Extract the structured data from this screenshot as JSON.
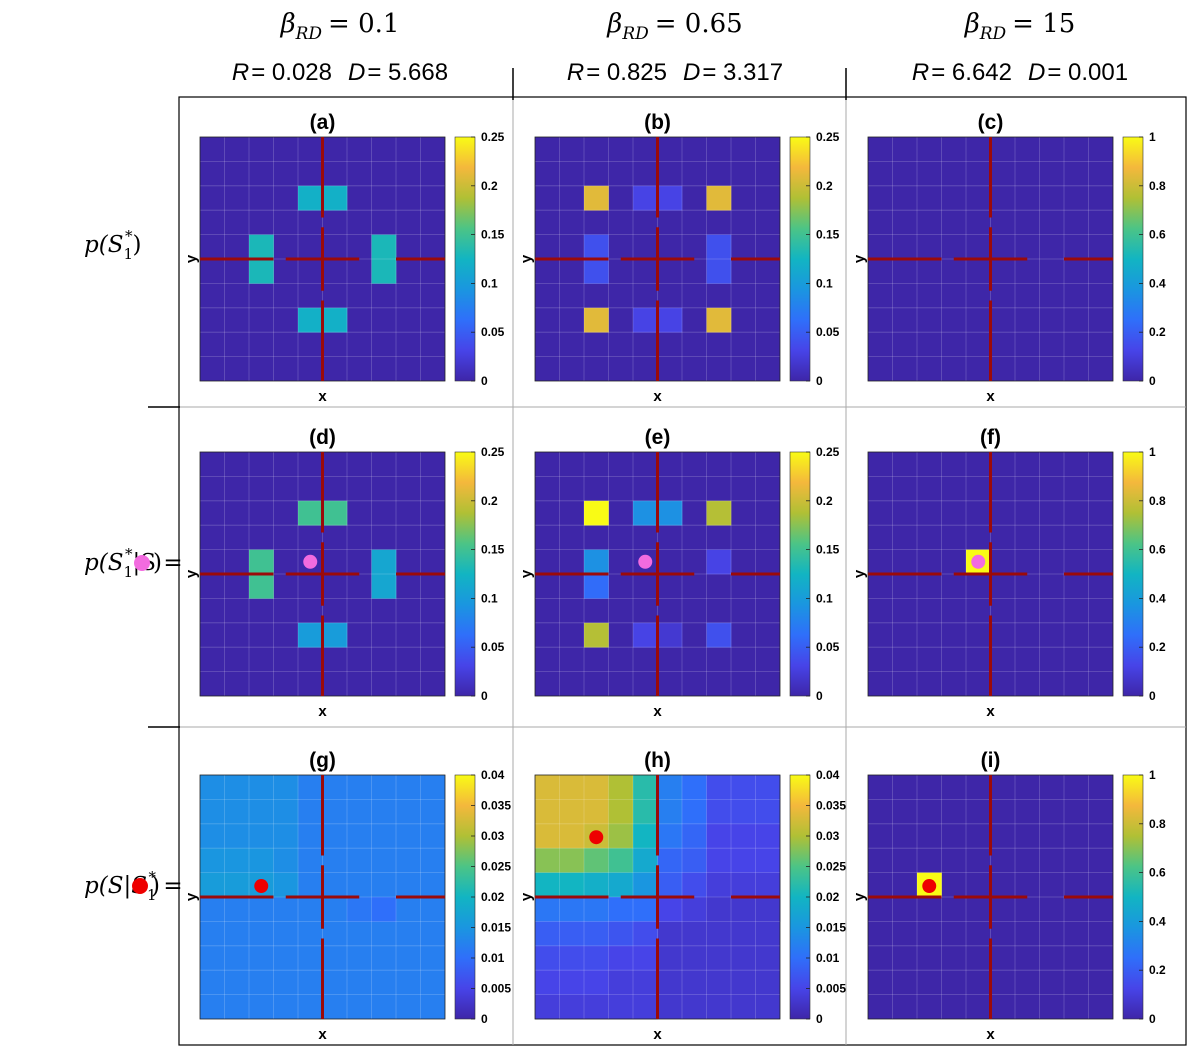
{
  "colors": {
    "low": "#3e26a8",
    "grid": "#6f69d0",
    "axis_line": "#9b0a0a",
    "marker_pink": "#f26bdf",
    "marker_red": "#ee0000",
    "frame": "#000000"
  },
  "columns": [
    {
      "beta_sym": "β",
      "beta_sub": "RD",
      "beta_value": "= 0.1",
      "r_label": "R",
      "r_value": "= 0.028",
      "d_label": "D",
      "d_value": "= 5.668"
    },
    {
      "beta_sym": "β",
      "beta_sub": "RD",
      "beta_value": "= 0.65",
      "r_label": "R",
      "r_value": "= 0.825",
      "d_label": "D",
      "d_value": "= 3.317"
    },
    {
      "beta_sym": "β",
      "beta_sub": "RD",
      "beta_value": "= 15",
      "r_label": "R",
      "r_value": "= 6.642",
      "d_label": "D",
      "d_value": "= 0.001"
    }
  ],
  "rows": [
    {
      "pre": "p(S",
      "sub": "1",
      "sup": "*",
      "post": ")",
      "marker": ""
    },
    {
      "pre": "p(S",
      "sub": "1",
      "sup": "*",
      "post": "|S =",
      "marker": "pink",
      "close": ")"
    },
    {
      "pre": "p(S|S",
      "sub": "1",
      "sup": "*",
      "post": " =",
      "marker": "red",
      "close": ")"
    }
  ],
  "chart_data": [
    {
      "id": "a",
      "type": "heatmap",
      "title": "(a)",
      "xlabel": "x",
      "ylabel": "y",
      "grid_size": 10,
      "cmax": 0.25,
      "colorbar_ticks": [
        "0",
        "0.05",
        "0.1",
        "0.15",
        "0.2",
        "0.25"
      ],
      "colorbar_tick_values": [
        0,
        0.05,
        0.1,
        0.15,
        0.2,
        0.25
      ],
      "cells": [
        [
          4,
          2,
          0.12
        ],
        [
          5,
          2,
          0.12
        ],
        [
          2,
          4,
          0.13
        ],
        [
          2,
          5,
          0.13
        ],
        [
          7,
          4,
          0.13
        ],
        [
          7,
          5,
          0.13
        ],
        [
          4,
          7,
          0.12
        ],
        [
          5,
          7,
          0.12
        ]
      ]
    },
    {
      "id": "b",
      "type": "heatmap",
      "title": "(b)",
      "xlabel": "x",
      "ylabel": "y",
      "grid_size": 10,
      "cmax": 0.25,
      "colorbar_ticks": [
        "0",
        "0.05",
        "0.1",
        "0.15",
        "0.2",
        "0.25"
      ],
      "colorbar_tick_values": [
        0,
        0.05,
        0.1,
        0.15,
        0.2,
        0.25
      ],
      "cells": [
        [
          2,
          2,
          0.21
        ],
        [
          7,
          2,
          0.21
        ],
        [
          4,
          2,
          0.03
        ],
        [
          5,
          2,
          0.03
        ],
        [
          2,
          4,
          0.04
        ],
        [
          2,
          5,
          0.04
        ],
        [
          7,
          4,
          0.04
        ],
        [
          7,
          5,
          0.04
        ],
        [
          2,
          7,
          0.21
        ],
        [
          7,
          7,
          0.21
        ],
        [
          4,
          7,
          0.03
        ],
        [
          5,
          7,
          0.03
        ]
      ]
    },
    {
      "id": "c",
      "type": "heatmap",
      "title": "(c)",
      "xlabel": "x",
      "ylabel": "y",
      "grid_size": 10,
      "cmax": 1,
      "colorbar_ticks": [
        "0",
        "0.2",
        "0.4",
        "0.6",
        "0.8",
        "1"
      ],
      "colorbar_tick_values": [
        0,
        0.2,
        0.4,
        0.6,
        0.8,
        1
      ],
      "cells": []
    },
    {
      "id": "d",
      "type": "heatmap",
      "title": "(d)",
      "xlabel": "x",
      "ylabel": "y",
      "grid_size": 10,
      "cmax": 0.25,
      "colorbar_ticks": [
        "0",
        "0.05",
        "0.1",
        "0.15",
        "0.2",
        "0.25"
      ],
      "colorbar_tick_values": [
        0,
        0.05,
        0.1,
        0.15,
        0.2,
        0.25
      ],
      "cells": [
        [
          4,
          2,
          0.15
        ],
        [
          5,
          2,
          0.15
        ],
        [
          2,
          4,
          0.15
        ],
        [
          2,
          5,
          0.15
        ],
        [
          7,
          4,
          0.11
        ],
        [
          7,
          5,
          0.11
        ],
        [
          4,
          7,
          0.1
        ],
        [
          5,
          7,
          0.1
        ]
      ],
      "marker": {
        "color": "pink",
        "col": 4.5,
        "row": 4.5
      }
    },
    {
      "id": "e",
      "type": "heatmap",
      "title": "(e)",
      "xlabel": "x",
      "ylabel": "y",
      "grid_size": 10,
      "cmax": 0.25,
      "colorbar_ticks": [
        "0",
        "0.05",
        "0.1",
        "0.15",
        "0.2",
        "0.25"
      ],
      "colorbar_tick_values": [
        0,
        0.05,
        0.1,
        0.15,
        0.2,
        0.25
      ],
      "cells": [
        [
          2,
          2,
          0.25
        ],
        [
          4,
          2,
          0.09
        ],
        [
          5,
          2,
          0.09
        ],
        [
          7,
          2,
          0.19
        ],
        [
          2,
          4,
          0.09
        ],
        [
          2,
          5,
          0.06
        ],
        [
          7,
          4,
          0.03
        ],
        [
          2,
          7,
          0.19
        ],
        [
          4,
          7,
          0.03
        ],
        [
          5,
          7,
          0.02
        ],
        [
          7,
          7,
          0.04
        ]
      ],
      "marker": {
        "color": "pink",
        "col": 4.5,
        "row": 4.5
      }
    },
    {
      "id": "f",
      "type": "heatmap",
      "title": "(f)",
      "xlabel": "x",
      "ylabel": "y",
      "grid_size": 10,
      "cmax": 1,
      "colorbar_ticks": [
        "0",
        "0.2",
        "0.4",
        "0.6",
        "0.8",
        "1"
      ],
      "colorbar_tick_values": [
        0,
        0.2,
        0.4,
        0.6,
        0.8,
        1
      ],
      "cells": [
        [
          4,
          4,
          1.0
        ]
      ],
      "marker": {
        "color": "pink",
        "col": 4.5,
        "row": 4.5
      }
    },
    {
      "id": "g",
      "type": "heatmap",
      "title": "(g)",
      "xlabel": "x",
      "ylabel": "y",
      "grid_size": 10,
      "cmax": 0.04,
      "colorbar_ticks": [
        "0",
        "0.005",
        "0.01",
        "0.015",
        "0.02",
        "0.025",
        "0.03",
        "0.035",
        "0.04"
      ],
      "colorbar_tick_values": [
        0,
        0.005,
        0.01,
        0.015,
        0.02,
        0.025,
        0.03,
        0.035,
        0.04
      ],
      "base_value": 0.012,
      "cells": [
        [
          0,
          0,
          0.014
        ],
        [
          1,
          0,
          0.014
        ],
        [
          2,
          0,
          0.014
        ],
        [
          3,
          0,
          0.014
        ],
        [
          0,
          1,
          0.014
        ],
        [
          1,
          1,
          0.014
        ],
        [
          2,
          1,
          0.014
        ],
        [
          3,
          1,
          0.014
        ],
        [
          0,
          2,
          0.014
        ],
        [
          1,
          2,
          0.014
        ],
        [
          2,
          2,
          0.014
        ],
        [
          3,
          2,
          0.014
        ],
        [
          0,
          3,
          0.015
        ],
        [
          1,
          3,
          0.015
        ],
        [
          2,
          3,
          0.015
        ],
        [
          3,
          3,
          0.014
        ],
        [
          0,
          4,
          0.016
        ],
        [
          1,
          4,
          0.016
        ],
        [
          2,
          4,
          0.016
        ],
        [
          3,
          4,
          0.015
        ],
        [
          7,
          5,
          0.01
        ],
        [
          6,
          5,
          0.011
        ]
      ],
      "marker": {
        "color": "red",
        "col": 2.5,
        "row": 4.55
      }
    },
    {
      "id": "h",
      "type": "heatmap",
      "title": "(h)",
      "xlabel": "x",
      "ylabel": "y",
      "grid_size": 10,
      "cmax": 0.04,
      "colorbar_ticks": [
        "0",
        "0.005",
        "0.01",
        "0.015",
        "0.02",
        "0.025",
        "0.03",
        "0.035",
        "0.04"
      ],
      "colorbar_tick_values": [
        0,
        0.005,
        0.01,
        0.015,
        0.02,
        0.025,
        0.03,
        0.035,
        0.04
      ],
      "base_value": 0.003,
      "cells": [
        [
          0,
          0,
          0.033
        ],
        [
          1,
          0,
          0.033
        ],
        [
          2,
          0,
          0.033
        ],
        [
          3,
          0,
          0.03
        ],
        [
          4,
          0,
          0.022
        ],
        [
          5,
          0,
          0.012
        ],
        [
          6,
          0,
          0.01
        ],
        [
          7,
          0,
          0.006
        ],
        [
          8,
          0,
          0.006
        ],
        [
          9,
          0,
          0.006
        ],
        [
          0,
          1,
          0.033
        ],
        [
          1,
          1,
          0.033
        ],
        [
          2,
          1,
          0.033
        ],
        [
          3,
          1,
          0.03
        ],
        [
          4,
          1,
          0.022
        ],
        [
          5,
          1,
          0.012
        ],
        [
          6,
          1,
          0.01
        ],
        [
          7,
          1,
          0.006
        ],
        [
          8,
          1,
          0.006
        ],
        [
          9,
          1,
          0.006
        ],
        [
          0,
          2,
          0.033
        ],
        [
          1,
          2,
          0.033
        ],
        [
          2,
          2,
          0.032
        ],
        [
          3,
          2,
          0.029
        ],
        [
          4,
          2,
          0.02
        ],
        [
          5,
          2,
          0.011
        ],
        [
          6,
          2,
          0.009
        ],
        [
          7,
          2,
          0.005
        ],
        [
          8,
          2,
          0.005
        ],
        [
          9,
          2,
          0.005
        ],
        [
          0,
          3,
          0.028
        ],
        [
          1,
          3,
          0.028
        ],
        [
          2,
          3,
          0.026
        ],
        [
          3,
          3,
          0.024
        ],
        [
          4,
          3,
          0.018
        ],
        [
          5,
          3,
          0.009
        ],
        [
          6,
          3,
          0.008
        ],
        [
          7,
          3,
          0.005
        ],
        [
          8,
          3,
          0.005
        ],
        [
          9,
          3,
          0.005
        ],
        [
          0,
          4,
          0.02
        ],
        [
          1,
          4,
          0.02
        ],
        [
          2,
          4,
          0.019
        ],
        [
          3,
          4,
          0.018
        ],
        [
          4,
          4,
          0.015
        ],
        [
          5,
          4,
          0.008
        ],
        [
          6,
          4,
          0.006
        ],
        [
          7,
          4,
          0.004
        ],
        [
          8,
          4,
          0.004
        ],
        [
          9,
          4,
          0.004
        ],
        [
          0,
          5,
          0.011
        ],
        [
          1,
          5,
          0.011
        ],
        [
          2,
          5,
          0.011
        ],
        [
          3,
          5,
          0.01
        ],
        [
          4,
          5,
          0.01
        ],
        [
          5,
          5,
          0.005
        ],
        [
          6,
          5,
          0.004
        ],
        [
          7,
          5,
          0.003
        ],
        [
          8,
          5,
          0.003
        ],
        [
          9,
          5,
          0.003
        ],
        [
          0,
          6,
          0.008
        ],
        [
          1,
          6,
          0.008
        ],
        [
          2,
          6,
          0.008
        ],
        [
          3,
          6,
          0.007
        ],
        [
          4,
          6,
          0.006
        ],
        [
          0,
          7,
          0.006
        ],
        [
          1,
          7,
          0.006
        ],
        [
          2,
          7,
          0.006
        ],
        [
          3,
          7,
          0.005
        ],
        [
          4,
          7,
          0.005
        ],
        [
          0,
          8,
          0.005
        ],
        [
          1,
          8,
          0.005
        ],
        [
          2,
          8,
          0.005
        ],
        [
          3,
          8,
          0.004
        ],
        [
          4,
          8,
          0.004
        ],
        [
          0,
          9,
          0.004
        ],
        [
          1,
          9,
          0.004
        ],
        [
          2,
          9,
          0.004
        ],
        [
          3,
          9,
          0.004
        ],
        [
          4,
          9,
          0.004
        ]
      ],
      "marker": {
        "color": "red",
        "col": 2.5,
        "row": 2.55
      }
    },
    {
      "id": "i",
      "type": "heatmap",
      "title": "(i)",
      "xlabel": "x",
      "ylabel": "y",
      "grid_size": 10,
      "cmax": 1,
      "colorbar_ticks": [
        "0",
        "0.2",
        "0.4",
        "0.6",
        "0.8",
        "1"
      ],
      "colorbar_tick_values": [
        0,
        0.2,
        0.4,
        0.6,
        0.8,
        1
      ],
      "cells": [
        [
          2,
          4,
          1.0
        ]
      ],
      "marker": {
        "color": "red",
        "col": 2.5,
        "row": 4.55
      }
    }
  ]
}
